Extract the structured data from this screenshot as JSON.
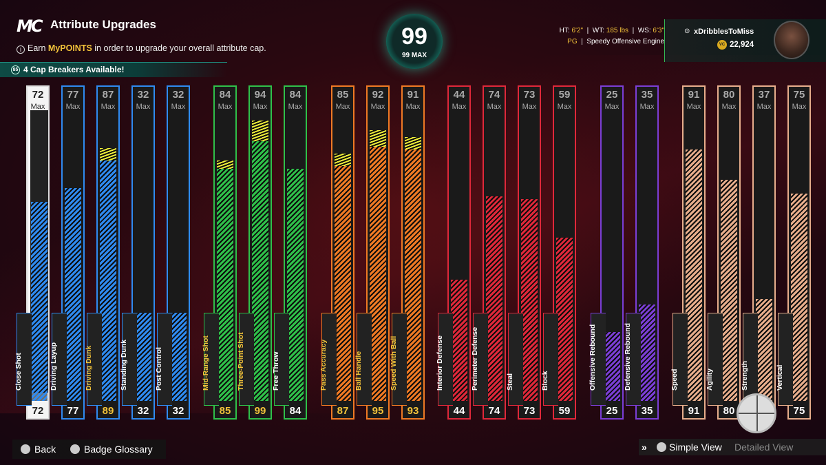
{
  "header": {
    "logo": "MC",
    "title": "Attribute Upgrades",
    "info_prefix": "Earn ",
    "info_highlight": "MyPOINTS",
    "info_suffix": " in order to upgrade your overall attribute cap.",
    "cap_breakers": "4 Cap Breakers Available!",
    "cap_icon": "85"
  },
  "overall": {
    "value": "99",
    "max": "99 MAX"
  },
  "bio": {
    "ht_label": "HT:",
    "ht": "6'2\"",
    "wt_label": "WT:",
    "wt": "185 lbs",
    "ws_label": "WS:",
    "ws": "6'3\"",
    "pos": "PG",
    "archetype": "Speedy Offensive Engine"
  },
  "user": {
    "name": "xDribblesToMiss",
    "vc": "22,924",
    "coin_icon": "VC"
  },
  "max_label": "Max",
  "attributes": [
    {
      "name": "Close Shot",
      "max": "72",
      "current": "72",
      "level": 72,
      "cap": false,
      "color": "#2f8bf1",
      "group": "inside"
    },
    {
      "name": "Driving Layup",
      "max": "77",
      "current": "77",
      "level": 77,
      "cap": false,
      "color": "#2f8bf1"
    },
    {
      "name": "Driving Dunk",
      "max": "87",
      "current": "89",
      "level": 87,
      "cap": true,
      "color": "#2f8bf1"
    },
    {
      "name": "Standing Dunk",
      "max": "32",
      "current": "32",
      "level": 32,
      "cap": false,
      "color": "#2f8bf1"
    },
    {
      "name": "Post Control",
      "max": "32",
      "current": "32",
      "level": 32,
      "cap": false,
      "color": "#2f8bf1"
    },
    {
      "name": "Mid-Range Shot",
      "max": "84",
      "current": "85",
      "level": 84,
      "cap": true,
      "color": "#2fc14a"
    },
    {
      "name": "Three-Point Shot",
      "max": "94",
      "current": "99",
      "level": 94,
      "cap": true,
      "color": "#2fc14a"
    },
    {
      "name": "Free Throw",
      "max": "84",
      "current": "84",
      "level": 84,
      "cap": false,
      "color": "#2fc14a"
    },
    {
      "name": "Pass Accuracy",
      "max": "85",
      "current": "87",
      "level": 85,
      "cap": true,
      "color": "#f07a24"
    },
    {
      "name": "Ball Handle",
      "max": "92",
      "current": "95",
      "level": 92,
      "cap": true,
      "color": "#f07a24"
    },
    {
      "name": "Speed With Ball",
      "max": "91",
      "current": "93",
      "level": 91,
      "cap": true,
      "color": "#f07a24"
    },
    {
      "name": "Interior Defense",
      "max": "44",
      "current": "44",
      "level": 44,
      "cap": false,
      "color": "#e0283a"
    },
    {
      "name": "Perimeter Defense",
      "max": "74",
      "current": "74",
      "level": 74,
      "cap": false,
      "color": "#e0283a"
    },
    {
      "name": "Steal",
      "max": "73",
      "current": "73",
      "level": 73,
      "cap": false,
      "color": "#e0283a"
    },
    {
      "name": "Block",
      "max": "59",
      "current": "59",
      "level": 59,
      "cap": false,
      "color": "#e0283a"
    },
    {
      "name": "Offensive Rebound",
      "max": "25",
      "current": "25",
      "level": 25,
      "cap": false,
      "color": "#7b3ed6"
    },
    {
      "name": "Defensive Rebound",
      "max": "35",
      "current": "35",
      "level": 35,
      "cap": false,
      "color": "#7b3ed6"
    },
    {
      "name": "Speed",
      "max": "91",
      "current": "91",
      "level": 91,
      "cap": false,
      "color": "#e8ae8c"
    },
    {
      "name": "Agility",
      "max": "80",
      "current": "80",
      "level": 80,
      "cap": false,
      "color": "#e8ae8c"
    },
    {
      "name": "Strength",
      "max": "37",
      "current": "37",
      "level": 37,
      "cap": false,
      "color": "#e8ae8c"
    },
    {
      "name": "Vertical",
      "max": "75",
      "current": "75",
      "level": 75,
      "cap": false,
      "color": "#e8ae8c"
    }
  ],
  "footer": {
    "back": "Back",
    "glossary": "Badge Glossary",
    "simple_view": "Simple View",
    "detailed_view": "Detailed View"
  },
  "colors": {
    "cap_breaker": "#f0ef3a",
    "highlight": "#f3c33a",
    "teal": "#1cc2a3"
  }
}
